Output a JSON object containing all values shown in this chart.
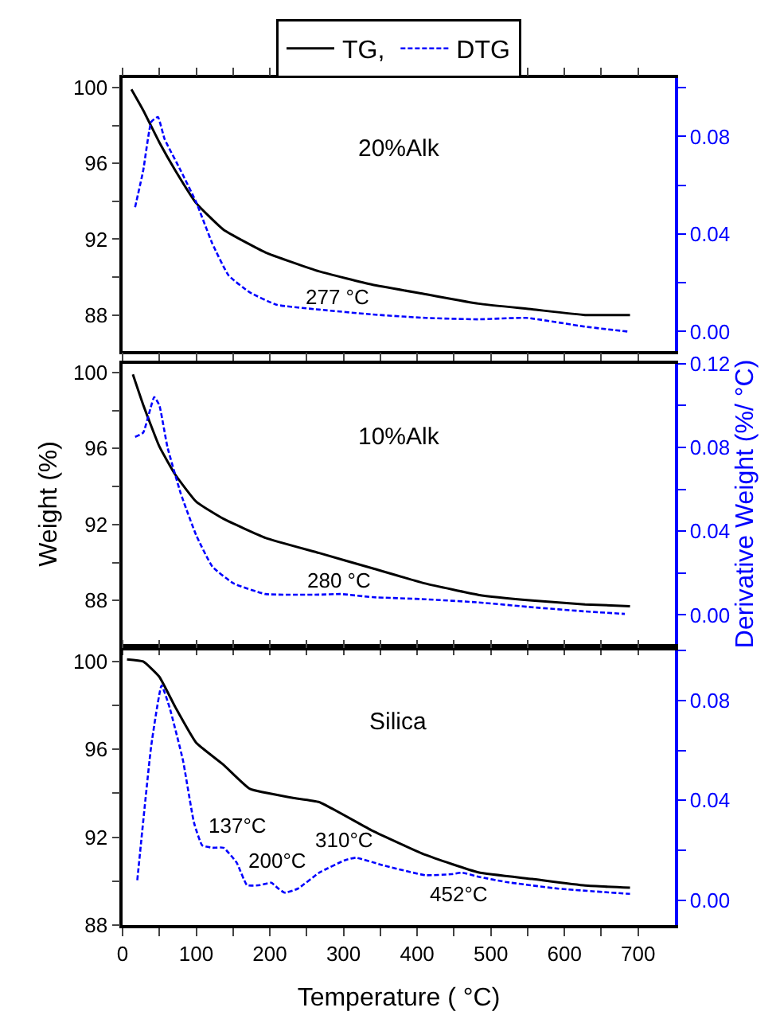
{
  "chart_data": [
    {
      "type": "line",
      "title": "20%Alk",
      "legend": "top",
      "tick_labels": "y",
      "xlim": [
        0,
        750
      ],
      "xticks": [
        0,
        {
          "value": 50,
          "label": null
        },
        100,
        {
          "value": 150,
          "label": null
        },
        200,
        {
          "value": 250,
          "label": null
        },
        300,
        {
          "value": 350,
          "label": null
        },
        400,
        {
          "value": 450,
          "label": null
        },
        500,
        {
          "value": 550,
          "label": null
        },
        600,
        {
          "value": 650,
          "label": null
        },
        700
      ],
      "ylim": [
        86.1,
        100.5
      ],
      "yticks": [
        88,
        {
          "value": 90,
          "label": null
        },
        92,
        {
          "value": 94,
          "label": null
        },
        96,
        {
          "value": 98,
          "label": null
        },
        100
      ],
      "y2lim": [
        -0.008,
        0.104
      ],
      "y2ticks": [
        {
          "value": 0,
          "label": "0.00"
        },
        {
          "value": 0.02,
          "label": null
        },
        0.04,
        {
          "value": 0.06,
          "label": null
        },
        0.08,
        {
          "value": 0.1,
          "label": null
        }
      ],
      "annotations": [
        "277 °C"
      ],
      "series": [
        {
          "name": "TG,",
          "color": "#000000",
          "line_style": "solid",
          "x": [
            12,
            28,
            50,
            72,
            100,
            137,
            194,
            267,
            339,
            411,
            483,
            556,
            628,
            689
          ],
          "values": [
            99.9,
            98.8,
            97.1,
            95.6,
            93.9,
            92.5,
            91.3,
            90.3,
            89.6,
            89.1,
            88.6,
            88.3,
            88.0,
            88.0
          ]
        },
        {
          "name": "DTG",
          "color": "#0000ff",
          "line_style": "dashed",
          "axis": "y2",
          "x": [
            17,
            28,
            39,
            48,
            57,
            79,
            100,
            122,
            144,
            173,
            209,
            267,
            339,
            411,
            483,
            548,
            628,
            686
          ],
          "values": [
            0.051,
            0.066,
            0.086,
            0.088,
            0.079,
            0.066,
            0.053,
            0.036,
            0.023,
            0.016,
            0.011,
            0.009,
            0.007,
            0.0056,
            0.005,
            0.0056,
            0.002,
            0.0
          ]
        }
      ]
    },
    {
      "type": "line",
      "title": "10%Alk",
      "ylabel": "Weight (%)",
      "y2label": "Derivative Weight (%/ °C)",
      "tick_labels": "y",
      "xlim": [
        0,
        750
      ],
      "xticks": [
        0,
        {
          "value": 50,
          "label": null
        },
        100,
        {
          "value": 150,
          "label": null
        },
        200,
        {
          "value": 250,
          "label": null
        },
        300,
        {
          "value": 350,
          "label": null
        },
        400,
        {
          "value": 450,
          "label": null
        },
        500,
        {
          "value": 550,
          "label": null
        },
        600,
        {
          "value": 650,
          "label": null
        },
        700
      ],
      "ylim": [
        85.7,
        100.47
      ],
      "yticks": [
        88,
        {
          "value": 90,
          "label": null
        },
        92,
        {
          "value": 94,
          "label": null
        },
        96,
        {
          "value": 98,
          "label": null
        },
        100
      ],
      "y2lim": [
        -0.014,
        0.12
      ],
      "y2ticks": [
        {
          "value": 0,
          "label": "0.00"
        },
        {
          "value": 0.02,
          "label": null
        },
        0.04,
        {
          "value": 0.06,
          "label": null
        },
        0.08,
        {
          "value": 0.1,
          "label": null
        },
        0.12
      ],
      "annotations": [
        "280 °C"
      ],
      "series": [
        {
          "color": "#000000",
          "line_style": "solid",
          "x": [
            14,
            28,
            50,
            72,
            100,
            137,
            194,
            267,
            339,
            411,
            483,
            556,
            628,
            689
          ],
          "values": [
            99.9,
            98.3,
            96.1,
            94.6,
            93.2,
            92.3,
            91.3,
            90.5,
            89.7,
            88.9,
            88.3,
            88.0,
            87.8,
            87.7
          ]
        },
        {
          "color": "#0000ff",
          "line_style": "dashed",
          "axis": "y2",
          "x": [
            17,
            28,
            43,
            50,
            61,
            79,
            100,
            122,
            151,
            194,
            267,
            296,
            339,
            411,
            483,
            556,
            628,
            682
          ],
          "values": [
            0.085,
            0.087,
            0.104,
            0.1,
            0.08,
            0.058,
            0.038,
            0.023,
            0.015,
            0.01,
            0.0097,
            0.01,
            0.0085,
            0.0075,
            0.006,
            0.0037,
            0.0017,
            0.0005
          ]
        }
      ]
    },
    {
      "type": "line",
      "title": "Silica",
      "xlabel": "Temperature ( °C)",
      "xlim": [
        0,
        750
      ],
      "xticks": [
        0,
        {
          "value": 50,
          "label": null
        },
        100,
        {
          "value": 150,
          "label": null
        },
        200,
        {
          "value": 250,
          "label": null
        },
        300,
        {
          "value": 350,
          "label": null
        },
        400,
        {
          "value": 450,
          "label": null
        },
        500,
        {
          "value": 550,
          "label": null
        },
        600,
        {
          "value": 650,
          "label": null
        },
        700
      ],
      "ylim": [
        88,
        100.5
      ],
      "yticks": [
        88,
        {
          "value": 90,
          "label": null
        },
        92,
        {
          "value": 94,
          "label": null
        },
        96,
        {
          "value": 98,
          "label": null
        },
        100
      ],
      "y2lim": [
        -0.01,
        0.1
      ],
      "y2ticks": [
        {
          "value": 0,
          "label": "0.00"
        },
        {
          "value": 0.02,
          "label": null
        },
        0.04,
        {
          "value": 0.06,
          "label": null
        },
        0.08,
        {
          "value": 0.1,
          "label": null
        }
      ],
      "annotations": [
        "137°C",
        "200°C",
        "310°C",
        "452°C"
      ],
      "series": [
        {
          "color": "#000000",
          "line_style": "solid",
          "x": [
            6,
            28,
            50,
            72,
            100,
            137,
            173,
            230,
            267,
            339,
            411,
            483,
            556,
            628,
            689
          ],
          "values": [
            100.1,
            100.0,
            99.3,
            97.9,
            96.3,
            95.3,
            94.2,
            93.8,
            93.6,
            92.3,
            91.2,
            90.4,
            90.1,
            89.8,
            89.7
          ]
        },
        {
          "color": "#0000ff",
          "line_style": "dashed",
          "axis": "y2",
          "x": [
            20,
            39,
            53,
            64,
            82,
            97,
            108,
            122,
            137,
            155,
            169,
            187,
            202,
            210,
            220,
            238,
            267,
            302,
            317,
            353,
            411,
            447,
            461,
            483,
            520,
            592,
            689
          ],
          "values": [
            0.008,
            0.062,
            0.086,
            0.077,
            0.056,
            0.031,
            0.022,
            0.021,
            0.021,
            0.015,
            0.006,
            0.006,
            0.007,
            0.005,
            0.003,
            0.0046,
            0.011,
            0.016,
            0.017,
            0.014,
            0.01,
            0.0104,
            0.011,
            0.0094,
            0.0073,
            0.0046,
            0.0025
          ]
        }
      ]
    }
  ]
}
